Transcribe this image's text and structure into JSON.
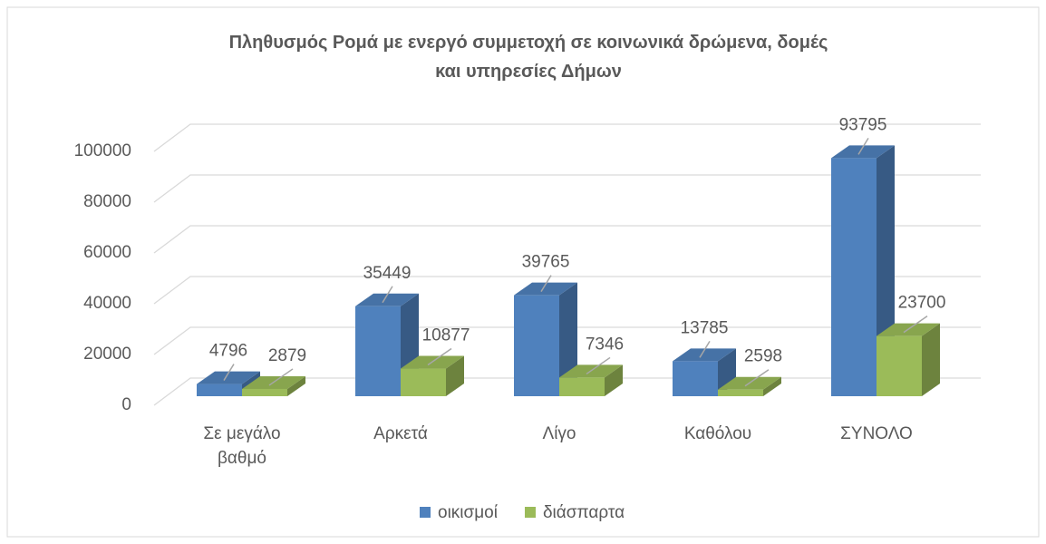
{
  "chart_data": {
    "type": "bar3d",
    "title": "Πληθυσμός Ρομά με ενεργό συμμετοχή σε κοινωνικά δρώμενα, δομές και υπηρεσίες Δήμων",
    "categories": [
      "Σε μεγάλο βαθμό",
      "Αρκετά",
      "Λίγο",
      "Καθόλου",
      "ΣΥΝΟΛΟ"
    ],
    "series": [
      {
        "name": "οικισμοί",
        "color": "#4f81bd",
        "values": [
          4796,
          35449,
          39765,
          13785,
          93795
        ]
      },
      {
        "name": "διάσπαρτα",
        "color": "#9bbb59",
        "values": [
          2879,
          10877,
          7346,
          2598,
          23700
        ]
      }
    ],
    "ylim": [
      0,
      100000
    ],
    "yticks": [
      0,
      20000,
      40000,
      60000,
      80000,
      100000
    ],
    "grid": true,
    "legend": "bottom"
  }
}
